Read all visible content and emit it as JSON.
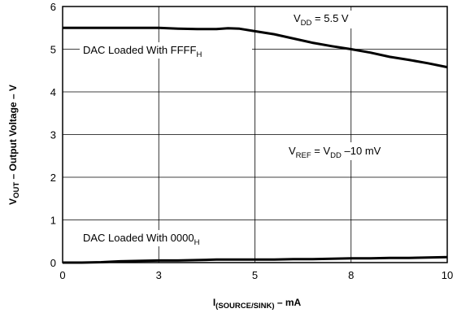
{
  "chart_data": {
    "type": "line",
    "xlabel": {
      "main": "I",
      "sub": "(SOURCE/SINK)",
      "rest": " – mA"
    },
    "ylabel": {
      "main": "V",
      "sub": "OUT",
      "rest": " – Output Voltage – V"
    },
    "xlim": [
      0,
      10
    ],
    "ylim": [
      0,
      6
    ],
    "x_ticks": [
      "0",
      "3",
      "5",
      "8",
      "10"
    ],
    "x_tick_values": [
      0,
      2.5,
      5,
      7.5,
      10
    ],
    "y_ticks": [
      "0",
      "1",
      "2",
      "3",
      "4",
      "5",
      "6"
    ],
    "y_tick_values": [
      0,
      1,
      2,
      3,
      4,
      5,
      6
    ],
    "grid": true,
    "series": [
      {
        "x": [
          0,
          0.5,
          1,
          1.5,
          2,
          2.5,
          3,
          3.5,
          4,
          4.3,
          4.6,
          5,
          5.5,
          6,
          6.5,
          7,
          7.5,
          8,
          8.5,
          9,
          9.5,
          10
        ],
        "y": [
          5.5,
          5.5,
          5.5,
          5.5,
          5.5,
          5.5,
          5.48,
          5.47,
          5.47,
          5.49,
          5.48,
          5.42,
          5.35,
          5.25,
          5.15,
          5.07,
          5.0,
          4.92,
          4.82,
          4.75,
          4.67,
          4.58
        ]
      },
      {
        "x": [
          0,
          0.5,
          1,
          1.5,
          2,
          2.5,
          3,
          3.5,
          4,
          4.5,
          5,
          5.5,
          6,
          6.5,
          7,
          7.5,
          8,
          8.5,
          9,
          9.5,
          10
        ],
        "y": [
          0.0,
          0.0,
          0.01,
          0.03,
          0.04,
          0.05,
          0.05,
          0.06,
          0.07,
          0.07,
          0.07,
          0.07,
          0.08,
          0.08,
          0.09,
          0.1,
          0.1,
          0.11,
          0.11,
          0.12,
          0.13
        ]
      }
    ],
    "annotations": {
      "vdd": {
        "main": "V",
        "sub": "DD",
        "rest": " = 5.5 V"
      },
      "ffff": {
        "main": "DAC Loaded With FFFF",
        "sub": "H"
      },
      "vref": {
        "a": "V",
        "a_sub": "REF",
        "b": " = V",
        "b_sub": "DD",
        "c": " –10 mV"
      },
      "zero": {
        "main": "DAC Loaded With 0000",
        "sub": "H"
      }
    }
  }
}
